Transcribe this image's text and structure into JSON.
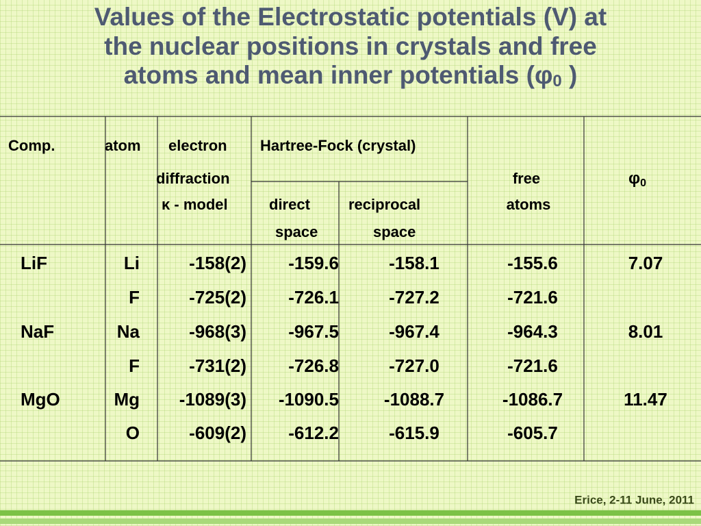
{
  "title": {
    "lines": [
      "Values of the Electrostatic potentials (V) at",
      "the nuclear positions in crystals and free",
      "atoms and mean inner potentials ("
    ],
    "symbol": "φ",
    "subscript": "0",
    "end": " )"
  },
  "table": {
    "headers": {
      "comp": "Comp.",
      "atom": "atom",
      "electron_diffraction": [
        "electron",
        "diffraction",
        "κ - model"
      ],
      "hartree_fock": "Hartree-Fock (crystal)",
      "direct_space": [
        "direct",
        "space"
      ],
      "reciprocal_space": [
        "reciprocal",
        "space"
      ],
      "free_atoms": [
        "free",
        "atoms"
      ],
      "phi0": {
        "symbol": "φ",
        "subscript": "0"
      }
    },
    "rows": [
      [
        "LiF",
        "Li",
        "-158(2)",
        "-159.6",
        "-158.1",
        "-155.6",
        "7.07"
      ],
      [
        null,
        "F",
        "-725(2)",
        "-726.1",
        "-727.2",
        "-721.6",
        null
      ],
      [
        "NaF",
        "Na",
        "-968(3)",
        "-967.5",
        "-967.4",
        "-964.3",
        "8.01"
      ],
      [
        null,
        "F",
        "-731(2)",
        "-726.8",
        "-727.0",
        "-721.6",
        null
      ],
      [
        "MgO",
        "Mg",
        "-1089(3)",
        "-1090.5",
        "-1088.7",
        "-1086.7",
        "11.47"
      ],
      [
        null,
        "O",
        "-609(2)",
        "-612.2",
        "-615.9",
        "-605.7",
        null
      ]
    ]
  },
  "footer": "Erice, 2-11 June, 2011"
}
